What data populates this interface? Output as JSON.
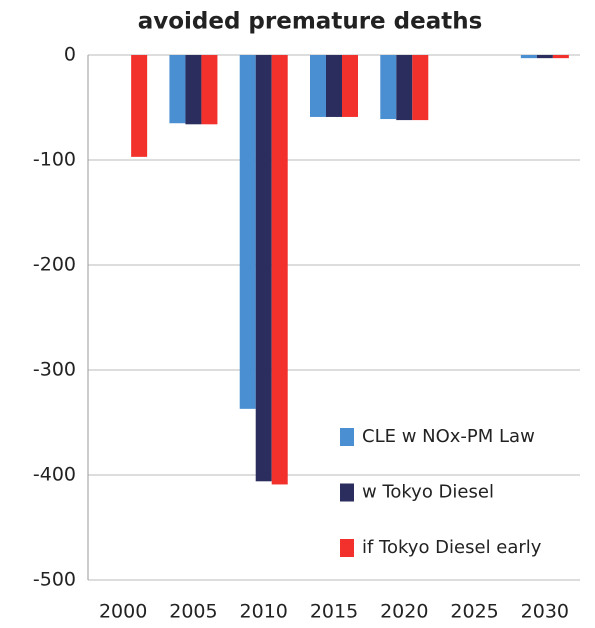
{
  "chart_data": {
    "type": "bar",
    "title": "avoided premature deaths",
    "categories": [
      "2000",
      "2005",
      "2010",
      "2015",
      "2020",
      "2025",
      "2030"
    ],
    "series": [
      {
        "name": "CLE w NOx-PM Law",
        "color": "#4a8fd2",
        "values": [
          null,
          -65,
          -337,
          -59,
          -61,
          null,
          -3
        ]
      },
      {
        "name": "w Tokyo Diesel",
        "color": "#2b2d5e",
        "values": [
          null,
          -66,
          -406,
          -59,
          -62,
          null,
          -3
        ]
      },
      {
        "name": "if Tokyo Diesel early",
        "color": "#f2302c",
        "values": [
          -97,
          -66,
          -409,
          -59,
          -62,
          null,
          -3
        ]
      }
    ],
    "ylim": [
      -500,
      0
    ],
    "yticks": [
      0,
      -100,
      -200,
      -300,
      -400,
      -500
    ],
    "grid": true,
    "legend": "lower right"
  }
}
